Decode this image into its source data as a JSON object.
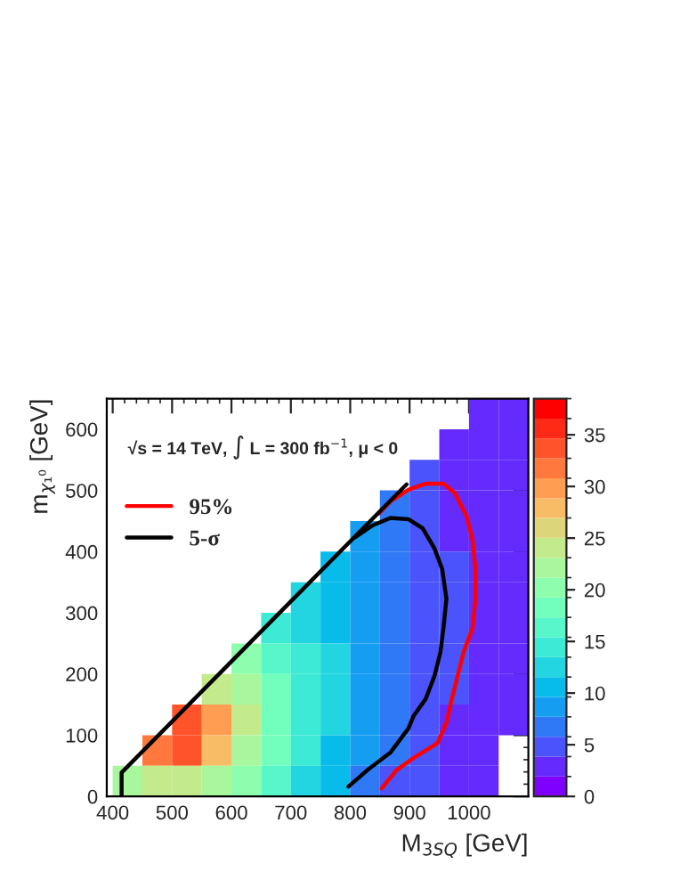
{
  "chart_data": {
    "type": "heatmap",
    "xlabel": "M$_{3SQ}$ [GeV]",
    "ylabel": "m$_{χ₁⁰}$ [GeV]",
    "annotations": [
      "√s = 14 TeV, ∫ L = 300 fb$^{−1}$, μ < 0"
    ],
    "x": [
      425,
      475,
      525,
      575,
      625,
      675,
      725,
      775,
      825,
      875,
      925,
      975,
      1025,
      1075
    ],
    "y": [
      625,
      575,
      525,
      475,
      425,
      375,
      325,
      275,
      225,
      175,
      125,
      75,
      25
    ],
    "cells": [
      [
        null,
        null,
        null,
        null,
        null,
        null,
        null,
        null,
        null,
        null,
        null,
        null,
        2,
        2
      ],
      [
        null,
        null,
        null,
        null,
        null,
        null,
        null,
        null,
        null,
        null,
        null,
        2,
        2,
        2
      ],
      [
        null,
        null,
        null,
        null,
        null,
        null,
        null,
        null,
        null,
        null,
        4,
        3,
        2,
        2
      ],
      [
        null,
        null,
        null,
        null,
        null,
        null,
        null,
        null,
        null,
        6,
        5,
        3,
        2,
        2
      ],
      [
        null,
        null,
        null,
        null,
        null,
        null,
        null,
        null,
        8,
        7,
        5,
        3,
        2,
        2
      ],
      [
        null,
        null,
        null,
        null,
        null,
        null,
        null,
        10,
        9,
        7,
        5,
        4,
        2,
        2
      ],
      [
        null,
        null,
        null,
        null,
        null,
        null,
        12,
        11,
        9,
        7,
        5,
        4,
        3,
        2
      ],
      [
        null,
        null,
        null,
        null,
        null,
        15,
        13,
        11,
        9,
        7,
        5,
        4,
        3,
        2
      ],
      [
        null,
        null,
        null,
        null,
        20,
        17,
        14,
        12,
        9,
        7,
        5,
        4,
        3,
        2
      ],
      [
        null,
        null,
        null,
        25,
        22,
        18,
        14,
        12,
        9,
        6,
        5,
        4,
        3,
        2
      ],
      [
        null,
        null,
        33,
        30,
        24,
        19,
        15,
        12,
        9,
        6,
        4,
        3,
        2,
        2
      ],
      [
        null,
        32,
        33,
        28,
        22,
        18,
        14,
        11,
        8,
        6,
        4,
        3,
        2,
        null
      ],
      [
        22,
        24,
        25,
        22,
        20,
        17,
        13,
        10,
        7,
        5,
        4,
        3,
        2,
        null
      ]
    ],
    "clim": [
      0,
      38.5
    ],
    "cticks": [
      0,
      5,
      10,
      15,
      20,
      25,
      30,
      35
    ],
    "xlim": [
      390,
      1100
    ],
    "ylim": [
      0,
      650
    ],
    "xticks": [
      400,
      500,
      600,
      700,
      800,
      900,
      1000
    ],
    "yticks": [
      0,
      100,
      200,
      300,
      400,
      500,
      600
    ],
    "legend": "top left",
    "series": [
      {
        "type": "line",
        "name": "95%",
        "color": "#ff0000",
        "x": [
          853,
          878,
          907,
          947,
          962,
          971,
          981,
          991,
          1006,
          1011,
          1011,
          1006,
          996,
          976,
          957,
          927,
          898,
          868,
          848
        ],
        "values": [
          13,
          43,
          63,
          87,
          120,
          159,
          197,
          236,
          275,
          323,
          371,
          419,
          458,
          496,
          511,
          511,
          501,
          482,
          462
        ]
      },
      {
        "type": "line",
        "name": "5-σ",
        "color": "#000000",
        "x": [
          797,
          829,
          868,
          898,
          907,
          927,
          942,
          952,
          957,
          962,
          955,
          942,
          922,
          898,
          868,
          838,
          809
        ],
        "values": [
          16,
          43,
          72,
          111,
          132,
          159,
          197,
          236,
          275,
          323,
          371,
          405,
          438,
          453,
          455,
          443,
          424
        ]
      },
      {
        "type": "line",
        "color": "#000000",
        "x": [
          415,
          415,
          895
        ],
        "values": [
          0,
          39,
          510
        ]
      }
    ]
  }
}
